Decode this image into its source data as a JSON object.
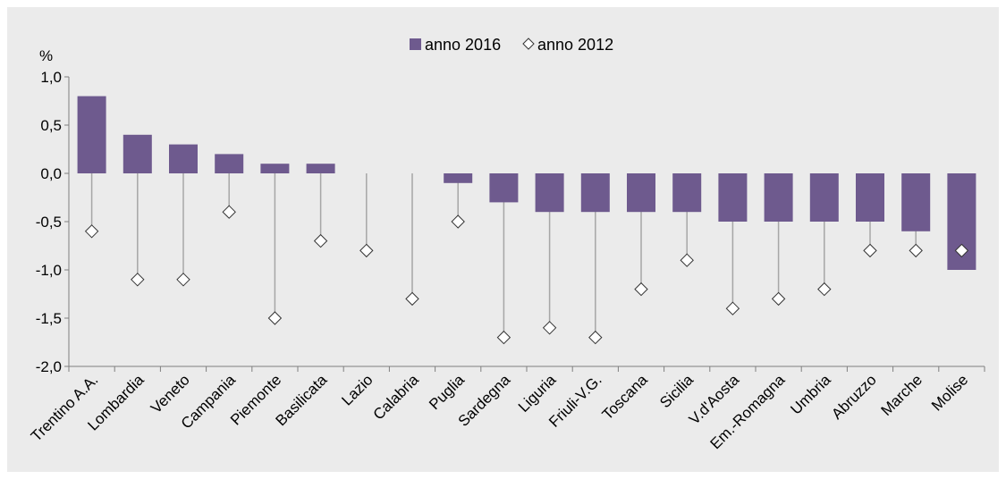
{
  "chart_data": {
    "type": "bar",
    "unit_label": "%",
    "categories": [
      "Trentino A.A.",
      "Lombardia",
      "Veneto",
      "Campania",
      "Piemonte",
      "Basilicata",
      "Lazio",
      "Calabria",
      "Puglia",
      "Sardegna",
      "Liguria",
      "Friuli-V.G.",
      "Toscana",
      "Sicilia",
      "V.d'Aosta",
      "Em.-Romagna",
      "Umbria",
      "Abruzzo",
      "Marche",
      "Molise"
    ],
    "series": [
      {
        "name": "anno 2016",
        "type": "bar",
        "color": "#6e5a8e",
        "values": [
          0.8,
          0.4,
          0.3,
          0.2,
          0.1,
          0.1,
          0.0,
          0.0,
          -0.1,
          -0.3,
          -0.4,
          -0.4,
          -0.4,
          -0.4,
          -0.5,
          -0.5,
          -0.5,
          -0.5,
          -0.6,
          -1.0
        ]
      },
      {
        "name": "anno 2012",
        "type": "scatter",
        "marker": "diamond",
        "values": [
          -0.6,
          -1.1,
          -1.1,
          -0.4,
          -1.5,
          -0.7,
          -0.8,
          -1.3,
          -0.5,
          -1.7,
          -1.6,
          -1.7,
          -1.2,
          -0.9,
          -1.4,
          -1.3,
          -1.2,
          -0.8,
          -0.8,
          -0.8
        ]
      }
    ],
    "yticks": [
      "1,0",
      "0,5",
      "0,0",
      "-0,5",
      "-1,0",
      "-1,5",
      "-2,0"
    ],
    "ytick_values": [
      1.0,
      0.5,
      0.0,
      -0.5,
      -1.0,
      -1.5,
      -2.0
    ],
    "ylim": [
      -2.0,
      1.0
    ],
    "legend_position": "top-center",
    "grid": false
  }
}
